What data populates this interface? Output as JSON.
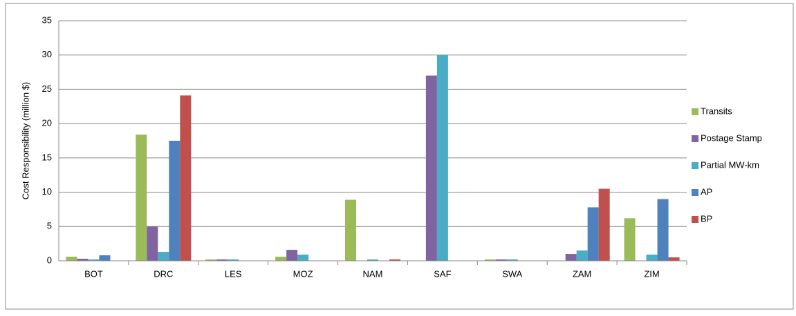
{
  "chart_data": {
    "type": "bar",
    "ylabel": "Cost Responsibility (million $)",
    "categories": [
      "BOT",
      "DRC",
      "LES",
      "MOZ",
      "NAM",
      "SAF",
      "SWA",
      "ZAM",
      "ZIM"
    ],
    "series": [
      {
        "name": "Transits",
        "color": "#9bbb59",
        "values": [
          0.6,
          18.4,
          0.2,
          0.6,
          8.9,
          0,
          0.2,
          0,
          6.2
        ]
      },
      {
        "name": "Postage Stamp",
        "color": "#8064a2",
        "values": [
          0.3,
          5.0,
          0.2,
          1.6,
          0,
          27,
          0.2,
          1.0,
          0
        ]
      },
      {
        "name": "Partial MW-km",
        "color": "#4bacc6",
        "values": [
          0.2,
          1.3,
          0.2,
          0.9,
          0.2,
          30,
          0.2,
          1.5,
          0.9
        ]
      },
      {
        "name": "AP",
        "color": "#4f81bd",
        "values": [
          0.8,
          17.5,
          0,
          0,
          0,
          0,
          0,
          7.8,
          9.0
        ]
      },
      {
        "name": "BP",
        "color": "#c0504d",
        "values": [
          0,
          24.1,
          0,
          0,
          0.2,
          0,
          0,
          10.5,
          0.5
        ]
      }
    ],
    "ylim": [
      0,
      35
    ],
    "yticks": [
      0,
      5,
      10,
      15,
      20,
      25,
      30,
      35
    ],
    "grid": true,
    "legend": "right"
  }
}
